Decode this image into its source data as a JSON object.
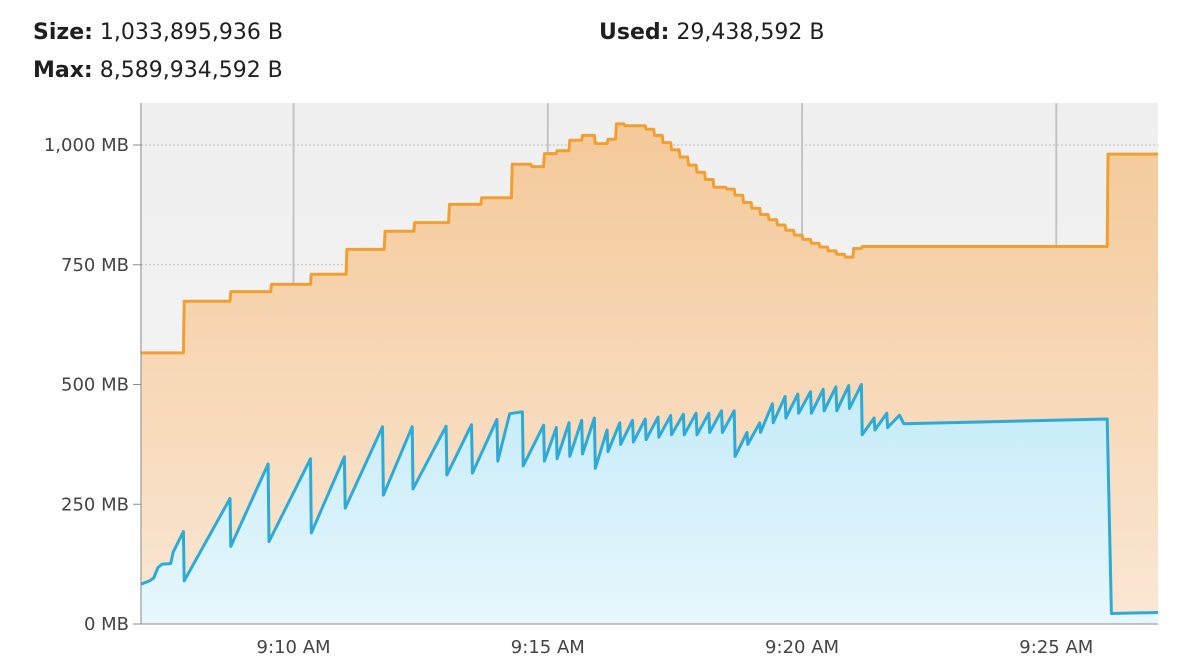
{
  "stats": {
    "size_label": "Size:",
    "size_value": "1,033,895,936 B",
    "max_label": "Max:",
    "max_value": "8,589,934,592 B",
    "used_label": "Used:",
    "used_value": "29,438,592 B"
  },
  "chart_data": {
    "type": "area",
    "title": "",
    "xlabel": "",
    "ylabel": "",
    "x_unit": "minutes",
    "xlim": [
      "9:07:00 AM",
      "9:27:00 AM"
    ],
    "ylim": [
      0,
      1000
    ],
    "y_ticks": [
      0,
      250,
      500,
      750,
      1000
    ],
    "y_tick_labels": [
      "0 MB",
      "250 MB",
      "500 MB",
      "750 MB",
      "1,000 MB"
    ],
    "x_ticks": [
      "9:10 AM",
      "9:15 AM",
      "9:20 AM",
      "9:25 AM"
    ],
    "grid": true,
    "legend": "none",
    "series": [
      {
        "key": "heap-size",
        "color": "#f0a033",
        "fill_top": "#f4c999",
        "fill_bottom": "#fae7d4",
        "points": [
          [
            "9:07:00 AM",
            566
          ],
          [
            "9:07:50 AM",
            566
          ],
          [
            "9:07:51 AM",
            674
          ],
          [
            "9:08:45 AM",
            674
          ],
          [
            "9:08:46 AM",
            694
          ],
          [
            "9:09:33 AM",
            694
          ],
          [
            "9:09:34 AM",
            709
          ],
          [
            "9:10:20 AM",
            709
          ],
          [
            "9:10:21 AM",
            730
          ],
          [
            "9:11:02 AM",
            730
          ],
          [
            "9:11:03 AM",
            782
          ],
          [
            "9:11:47 AM",
            782
          ],
          [
            "9:11:48 AM",
            820
          ],
          [
            "9:12:22 AM",
            820
          ],
          [
            "9:12:23 AM",
            838
          ],
          [
            "9:13:03 AM",
            838
          ],
          [
            "9:13:04 AM",
            876
          ],
          [
            "9:13:41 AM",
            876
          ],
          [
            "9:13:42 AM",
            890
          ],
          [
            "9:14:17 AM",
            890
          ],
          [
            "9:14:18 AM",
            960
          ],
          [
            "9:14:40 AM",
            960
          ],
          [
            "9:14:41 AM",
            955
          ],
          [
            "9:14:55 AM",
            955
          ],
          [
            "9:14:56 AM",
            982
          ],
          [
            "9:15:10 AM",
            982
          ],
          [
            "9:15:11 AM",
            988
          ],
          [
            "9:15:25 AM",
            988
          ],
          [
            "9:15:26 AM",
            1010
          ],
          [
            "9:15:40 AM",
            1010
          ],
          [
            "9:15:41 AM",
            1020
          ],
          [
            "9:15:55 AM",
            1020
          ],
          [
            "9:15:56 AM",
            1003
          ],
          [
            "9:16:10 AM",
            1003
          ],
          [
            "9:16:11 AM",
            1012
          ],
          [
            "9:16:20 AM",
            1012
          ],
          [
            "9:16:21 AM",
            1044
          ],
          [
            "9:16:30 AM",
            1044
          ],
          [
            "9:16:31 AM",
            1040
          ],
          [
            "9:16:55 AM",
            1040
          ],
          [
            "9:16:56 AM",
            1033
          ],
          [
            "9:17:05 AM",
            1033
          ],
          [
            "9:17:06 AM",
            1020
          ],
          [
            "9:17:15 AM",
            1020
          ],
          [
            "9:17:16 AM",
            1005
          ],
          [
            "9:17:25 AM",
            1005
          ],
          [
            "9:17:26 AM",
            990
          ],
          [
            "9:17:35 AM",
            990
          ],
          [
            "9:17:36 AM",
            975
          ],
          [
            "9:17:45 AM",
            975
          ],
          [
            "9:17:46 AM",
            958
          ],
          [
            "9:17:55 AM",
            958
          ],
          [
            "9:17:56 AM",
            943
          ],
          [
            "9:18:05 AM",
            943
          ],
          [
            "9:18:06 AM",
            928
          ],
          [
            "9:18:15 AM",
            928
          ],
          [
            "9:18:16 AM",
            912
          ],
          [
            "9:18:30 AM",
            912
          ],
          [
            "9:18:31 AM",
            908
          ],
          [
            "9:18:40 AM",
            908
          ],
          [
            "9:18:41 AM",
            895
          ],
          [
            "9:18:50 AM",
            895
          ],
          [
            "9:18:51 AM",
            880
          ],
          [
            "9:19:00 AM",
            880
          ],
          [
            "9:19:01 AM",
            868
          ],
          [
            "9:19:10 AM",
            868
          ],
          [
            "9:19:11 AM",
            855
          ],
          [
            "9:19:20 AM",
            855
          ],
          [
            "9:19:21 AM",
            844
          ],
          [
            "9:19:30 AM",
            844
          ],
          [
            "9:19:31 AM",
            833
          ],
          [
            "9:19:40 AM",
            833
          ],
          [
            "9:19:41 AM",
            822
          ],
          [
            "9:19:50 AM",
            822
          ],
          [
            "9:19:51 AM",
            812
          ],
          [
            "9:20:00 AM",
            812
          ],
          [
            "9:20:01 AM",
            803
          ],
          [
            "9:20:10 AM",
            803
          ],
          [
            "9:20:11 AM",
            795
          ],
          [
            "9:20:20 AM",
            795
          ],
          [
            "9:20:21 AM",
            787
          ],
          [
            "9:20:30 AM",
            787
          ],
          [
            "9:20:31 AM",
            779
          ],
          [
            "9:20:40 AM",
            779
          ],
          [
            "9:20:41 AM",
            772
          ],
          [
            "9:20:50 AM",
            772
          ],
          [
            "9:20:51 AM",
            766
          ],
          [
            "9:21:00 AM",
            766
          ],
          [
            "9:21:01 AM",
            784
          ],
          [
            "9:21:10 AM",
            784
          ],
          [
            "9:21:11 AM",
            788
          ],
          [
            "9:26:00 AM",
            788
          ],
          [
            "9:26:01 AM",
            981
          ],
          [
            "9:27:00 AM",
            981
          ]
        ]
      },
      {
        "key": "used-heap",
        "color": "#2eaad6",
        "fill_top": "#c4ebf8",
        "fill_bottom": "#e8f7fd",
        "points": [
          [
            "9:07:00 AM",
            83
          ],
          [
            "9:07:10 AM",
            90
          ],
          [
            "9:07:15 AM",
            96
          ],
          [
            "9:07:20 AM",
            118
          ],
          [
            "9:07:25 AM",
            125
          ],
          [
            "9:07:35 AM",
            126
          ],
          [
            "9:07:38 AM",
            150
          ],
          [
            "9:07:50 AM",
            193
          ],
          [
            "9:07:51 AM",
            90
          ],
          [
            "9:08:45 AM",
            262
          ],
          [
            "9:08:46 AM",
            162
          ],
          [
            "9:09:30 AM",
            334
          ],
          [
            "9:09:31 AM",
            172
          ],
          [
            "9:10:20 AM",
            345
          ],
          [
            "9:10:21 AM",
            190
          ],
          [
            "9:11:00 AM",
            349
          ],
          [
            "9:11:01 AM",
            242
          ],
          [
            "9:11:45 AM",
            412
          ],
          [
            "9:11:46 AM",
            269
          ],
          [
            "9:12:20 AM",
            412
          ],
          [
            "9:12:21 AM",
            282
          ],
          [
            "9:13:00 AM",
            413
          ],
          [
            "9:13:01 AM",
            311
          ],
          [
            "9:13:30 AM",
            416
          ],
          [
            "9:13:31 AM",
            315
          ],
          [
            "9:14:00 AM",
            427
          ],
          [
            "9:14:01 AM",
            340
          ],
          [
            "9:14:15 AM",
            439
          ],
          [
            "9:14:30 AM",
            443
          ],
          [
            "9:14:31 AM",
            330
          ],
          [
            "9:14:55 AM",
            415
          ],
          [
            "9:14:56 AM",
            340
          ],
          [
            "9:15:10 AM",
            410
          ],
          [
            "9:15:11 AM",
            345
          ],
          [
            "9:15:25 AM",
            420
          ],
          [
            "9:15:26 AM",
            350
          ],
          [
            "9:15:40 AM",
            425
          ],
          [
            "9:15:41 AM",
            355
          ],
          [
            "9:15:55 AM",
            430
          ],
          [
            "9:15:56 AM",
            325
          ],
          [
            "9:16:10 AM",
            405
          ],
          [
            "9:16:11 AM",
            360
          ],
          [
            "9:16:25 AM",
            420
          ],
          [
            "9:16:26 AM",
            375
          ],
          [
            "9:16:40 AM",
            425
          ],
          [
            "9:16:41 AM",
            380
          ],
          [
            "9:16:55 AM",
            428
          ],
          [
            "9:16:56 AM",
            385
          ],
          [
            "9:17:10 AM",
            432
          ],
          [
            "9:17:11 AM",
            390
          ],
          [
            "9:17:25 AM",
            435
          ],
          [
            "9:17:26 AM",
            395
          ],
          [
            "9:17:40 AM",
            438
          ],
          [
            "9:17:41 AM",
            395
          ],
          [
            "9:17:55 AM",
            440
          ],
          [
            "9:17:56 AM",
            395
          ],
          [
            "9:18:10 AM",
            440
          ],
          [
            "9:18:11 AM",
            400
          ],
          [
            "9:18:25 AM",
            445
          ],
          [
            "9:18:26 AM",
            400
          ],
          [
            "9:18:40 AM",
            445
          ],
          [
            "9:18:41 AM",
            350
          ],
          [
            "9:18:55 AM",
            400
          ],
          [
            "9:18:56 AM",
            375
          ],
          [
            "9:19:10 AM",
            420
          ],
          [
            "9:19:11 AM",
            400
          ],
          [
            "9:19:25 AM",
            460
          ],
          [
            "9:19:26 AM",
            420
          ],
          [
            "9:19:40 AM",
            475
          ],
          [
            "9:19:41 AM",
            430
          ],
          [
            "9:19:55 AM",
            480
          ],
          [
            "9:19:56 AM",
            440
          ],
          [
            "9:20:10 AM",
            485
          ],
          [
            "9:20:11 AM",
            440
          ],
          [
            "9:20:25 AM",
            490
          ],
          [
            "9:20:26 AM",
            445
          ],
          [
            "9:20:40 AM",
            495
          ],
          [
            "9:20:41 AM",
            445
          ],
          [
            "9:20:55 AM",
            498
          ],
          [
            "9:20:56 AM",
            450
          ],
          [
            "9:21:10 AM",
            500
          ],
          [
            "9:21:11 AM",
            395
          ],
          [
            "9:21:25 AM",
            430
          ],
          [
            "9:21:26 AM",
            405
          ],
          [
            "9:21:40 AM",
            440
          ],
          [
            "9:21:41 AM",
            410
          ],
          [
            "9:21:55 AM",
            436
          ],
          [
            "9:22:00 AM",
            418
          ],
          [
            "9:26:00 AM",
            428
          ],
          [
            "9:26:05 AM",
            22
          ],
          [
            "9:27:00 AM",
            24
          ]
        ]
      }
    ]
  }
}
